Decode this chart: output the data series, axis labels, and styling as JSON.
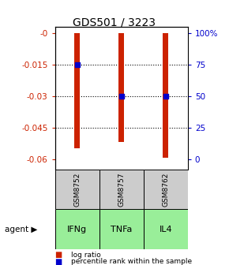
{
  "title": "GDS501 / 3223",
  "samples": [
    "GSM8752",
    "GSM8757",
    "GSM8762"
  ],
  "agents": [
    "IFNg",
    "TNFa",
    "IL4"
  ],
  "log_ratios": [
    -0.055,
    -0.052,
    -0.0595
  ],
  "percentile_ranks": [
    75.0,
    50.0,
    50.0
  ],
  "left_ylim": [
    -0.065,
    0.003
  ],
  "left_yticks": [
    0,
    -0.015,
    -0.03,
    -0.045,
    -0.06
  ],
  "left_yticklabels": [
    "-0",
    "-0.015",
    "-0.03",
    "-0.045",
    "-0.06"
  ],
  "right_yticks": [
    0,
    25,
    50,
    75,
    100
  ],
  "right_yticklabels": [
    "0",
    "25",
    "50",
    "75",
    "100%"
  ],
  "bar_color": "#cc2200",
  "dot_color": "#0000cc",
  "sample_box_color": "#cccccc",
  "agent_box_color": "#99ee99",
  "legend_bar_label": "log ratio",
  "legend_dot_label": "percentile rank within the sample"
}
